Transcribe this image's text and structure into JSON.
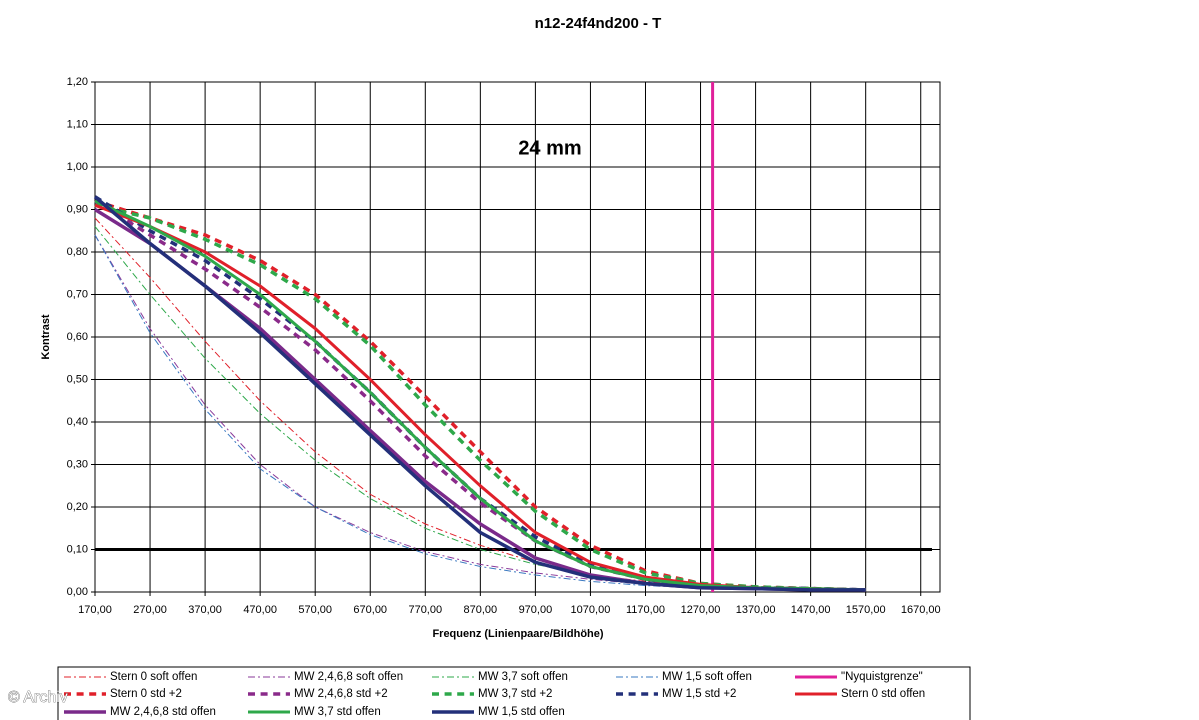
{
  "chart_data": {
    "type": "line",
    "title": "n12-24f4nd200 - T",
    "annotation": "24 mm",
    "xlabel": "Frequenz (Linienpaare/Bildhöhe)",
    "ylabel": "Kontrast",
    "watermark": "© Archiv",
    "grid": true,
    "xlim": [
      170,
      1705
    ],
    "ylim": [
      0,
      1.2
    ],
    "xticks": [
      {
        "value": 170,
        "label": "170,00"
      },
      {
        "value": 270,
        "label": "270,00"
      },
      {
        "value": 370,
        "label": "370,00"
      },
      {
        "value": 470,
        "label": "470,00"
      },
      {
        "value": 570,
        "label": "570,00"
      },
      {
        "value": 670,
        "label": "670,00"
      },
      {
        "value": 770,
        "label": "770,00"
      },
      {
        "value": 870,
        "label": "870,00"
      },
      {
        "value": 970,
        "label": "970,00"
      },
      {
        "value": 1070,
        "label": "1070,00"
      },
      {
        "value": 1170,
        "label": "1170,00"
      },
      {
        "value": 1270,
        "label": "1270,00"
      },
      {
        "value": 1370,
        "label": "1370,00"
      },
      {
        "value": 1470,
        "label": "1470,00"
      },
      {
        "value": 1570,
        "label": "1570,00"
      },
      {
        "value": 1670,
        "label": "1670,00"
      }
    ],
    "yticks": [
      {
        "value": 0,
        "label": "0,00"
      },
      {
        "value": 0.1,
        "label": "0,10"
      },
      {
        "value": 0.2,
        "label": "0,20"
      },
      {
        "value": 0.3,
        "label": "0,30"
      },
      {
        "value": 0.4,
        "label": "0,40"
      },
      {
        "value": 0.5,
        "label": "0,50"
      },
      {
        "value": 0.6,
        "label": "0,60"
      },
      {
        "value": 0.7,
        "label": "0,70"
      },
      {
        "value": 0.8,
        "label": "0,80"
      },
      {
        "value": 0.9,
        "label": "0,90"
      },
      {
        "value": 1.0,
        "label": "1,00"
      },
      {
        "value": 1.1,
        "label": "1,10"
      },
      {
        "value": 1.2,
        "label": "1,20"
      }
    ],
    "hline": 0.1,
    "hline_color": "#000000",
    "x": [
      170,
      270,
      370,
      470,
      570,
      670,
      770,
      870,
      970,
      1070,
      1170,
      1270,
      1370,
      1470,
      1570
    ],
    "series": [
      {
        "name": "Stern 0 soft offen",
        "color": "#e0202a",
        "dash": "dashdot",
        "width": 1,
        "values": [
          0.88,
          0.74,
          0.59,
          0.45,
          0.33,
          0.23,
          0.16,
          0.11,
          0.07,
          0.04,
          0.025,
          0.015,
          0.01,
          0.01,
          0.005
        ]
      },
      {
        "name": "MW 2,4,6,8 soft offen",
        "color": "#8a3a9a",
        "dash": "dashdot",
        "width": 1,
        "values": [
          0.84,
          0.62,
          0.44,
          0.3,
          0.2,
          0.14,
          0.095,
          0.065,
          0.045,
          0.03,
          0.018,
          0.012,
          0.008,
          0.005,
          0.005
        ]
      },
      {
        "name": "MW 3,7 soft offen",
        "color": "#2ea84a",
        "dash": "dashdot",
        "width": 1,
        "values": [
          0.86,
          0.7,
          0.55,
          0.42,
          0.31,
          0.22,
          0.15,
          0.1,
          0.065,
          0.04,
          0.022,
          0.015,
          0.01,
          0.008,
          0.005
        ]
      },
      {
        "name": "MW 1,5 soft offen",
        "color": "#3a78c0",
        "dash": "dashdot",
        "width": 1,
        "values": [
          0.84,
          0.61,
          0.43,
          0.29,
          0.2,
          0.135,
          0.09,
          0.06,
          0.04,
          0.025,
          0.015,
          0.01,
          0.008,
          0.005,
          0.005
        ]
      },
      {
        "name": "\"Nyquistgrenze\"",
        "color": "#e0209a",
        "dash": "solid",
        "width": 3,
        "x": [
          1292,
          1292
        ],
        "values": [
          0,
          1.2
        ]
      },
      {
        "name": "Stern 0 std +2",
        "color": "#e0202a",
        "dash": "dash",
        "width": 3.5,
        "values": [
          0.92,
          0.88,
          0.84,
          0.78,
          0.7,
          0.59,
          0.46,
          0.33,
          0.2,
          0.11,
          0.05,
          0.02,
          0.012,
          0.008,
          0.005
        ]
      },
      {
        "name": "MW 2,4,6,8 std +2",
        "color": "#8a2a8a",
        "dash": "dash",
        "width": 3.5,
        "values": [
          0.92,
          0.84,
          0.76,
          0.67,
          0.57,
          0.45,
          0.32,
          0.21,
          0.12,
          0.06,
          0.03,
          0.015,
          0.01,
          0.008,
          0.005
        ]
      },
      {
        "name": "MW 3,7 std +2",
        "color": "#2ea84a",
        "dash": "dash",
        "width": 3.5,
        "values": [
          0.91,
          0.88,
          0.83,
          0.77,
          0.69,
          0.58,
          0.44,
          0.31,
          0.19,
          0.1,
          0.045,
          0.02,
          0.012,
          0.008,
          0.005
        ]
      },
      {
        "name": "MW 1,5 std +2",
        "color": "#23307a",
        "dash": "dash",
        "width": 3.5,
        "values": [
          0.93,
          0.85,
          0.78,
          0.69,
          0.59,
          0.47,
          0.34,
          0.22,
          0.13,
          0.065,
          0.03,
          0.015,
          0.01,
          0.008,
          0.005
        ]
      },
      {
        "name": "Stern 0 std offen",
        "color": "#e0202a",
        "dash": "solid",
        "width": 3,
        "values": [
          0.91,
          0.86,
          0.8,
          0.72,
          0.62,
          0.5,
          0.37,
          0.25,
          0.14,
          0.07,
          0.035,
          0.018,
          0.01,
          0.008,
          0.005
        ]
      },
      {
        "name": "MW 2,4,6,8 std offen",
        "color": "#7a2a8a",
        "dash": "solid",
        "width": 3.5,
        "values": [
          0.9,
          0.82,
          0.72,
          0.62,
          0.5,
          0.38,
          0.26,
          0.16,
          0.08,
          0.04,
          0.02,
          0.01,
          0.008,
          0.005,
          0.005
        ]
      },
      {
        "name": "MW 3,7 std offen",
        "color": "#2ea84a",
        "dash": "solid",
        "width": 3,
        "values": [
          0.92,
          0.86,
          0.79,
          0.7,
          0.59,
          0.47,
          0.34,
          0.22,
          0.12,
          0.06,
          0.03,
          0.015,
          0.01,
          0.008,
          0.005
        ]
      },
      {
        "name": "MW 1,5 std offen",
        "color": "#23307a",
        "dash": "solid",
        "width": 3.5,
        "values": [
          0.93,
          0.82,
          0.72,
          0.61,
          0.49,
          0.37,
          0.25,
          0.14,
          0.07,
          0.035,
          0.02,
          0.01,
          0.008,
          0.005,
          0.005
        ]
      }
    ]
  }
}
